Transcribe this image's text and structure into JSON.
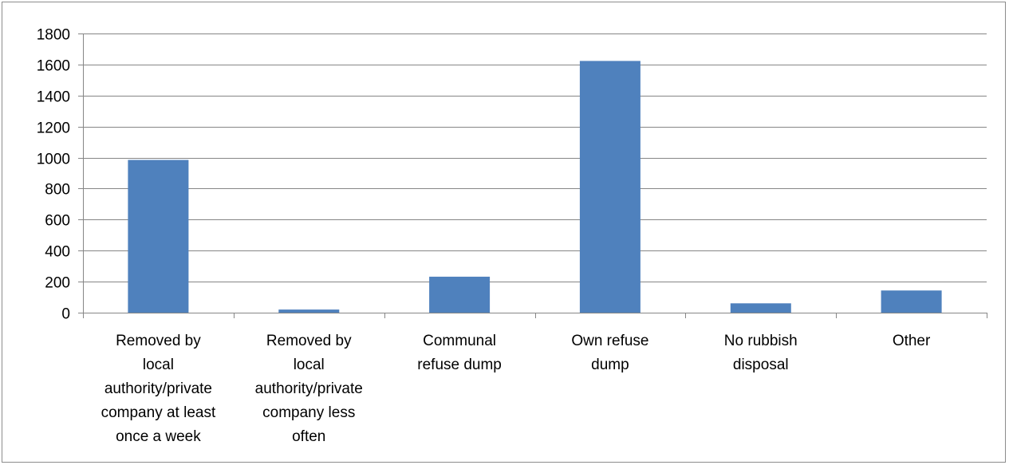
{
  "chart_data": {
    "type": "bar",
    "categories": [
      [
        "Removed by",
        "local",
        "authority/private",
        "company at least",
        "once a week"
      ],
      [
        "Removed by",
        "local",
        "authority/private",
        "company less",
        "often"
      ],
      [
        "Communal",
        "refuse dump"
      ],
      [
        "Own refuse",
        "dump"
      ],
      [
        "No rubbish",
        "disposal"
      ],
      [
        "Other"
      ]
    ],
    "series": [
      {
        "values": [
          985,
          20,
          232,
          1623,
          60,
          143
        ],
        "color": "#4f81bd"
      }
    ],
    "ylim": [
      0,
      1800
    ],
    "yticks": [
      0,
      200,
      400,
      600,
      800,
      1000,
      1200,
      1400,
      1600,
      1800
    ],
    "grid": true,
    "legend": "none",
    "title": "",
    "xlabel": "",
    "ylabel": ""
  }
}
